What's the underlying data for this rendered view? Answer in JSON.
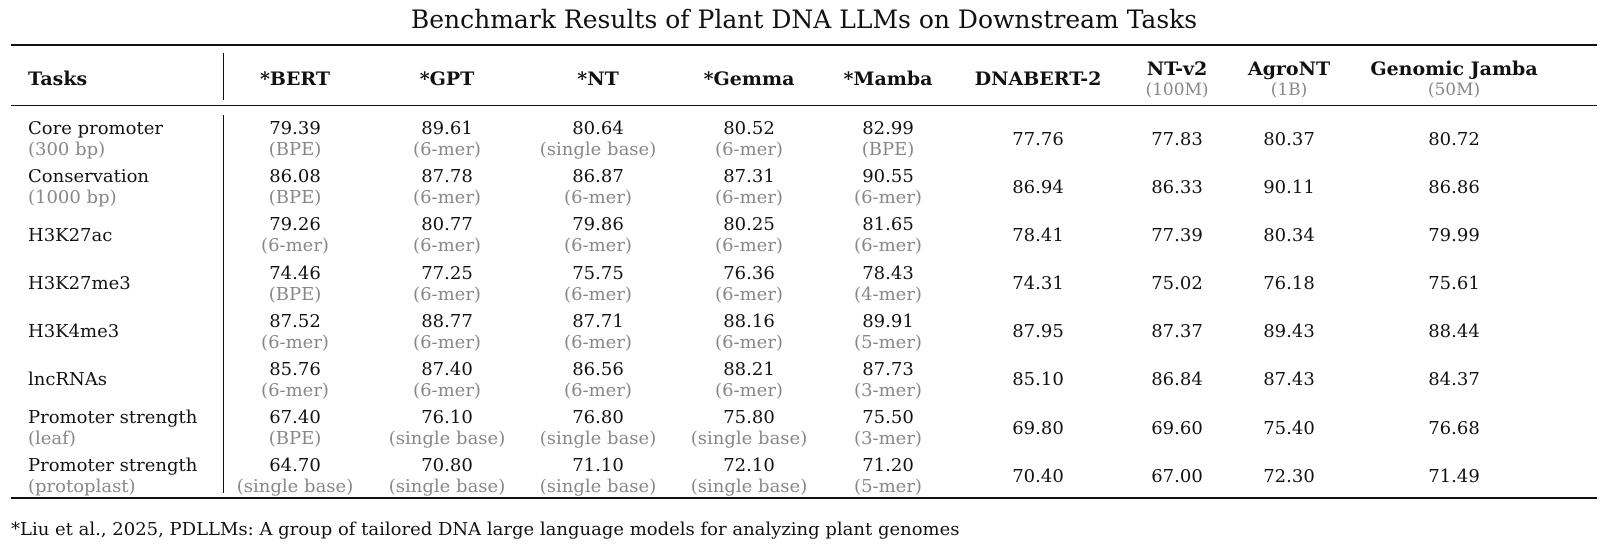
{
  "title": "Benchmark Results of Plant DNA LLMs on Downstream Tasks",
  "headers": {
    "tasks": "Tasks",
    "columns": [
      {
        "name": "*BERT",
        "sub": ""
      },
      {
        "name": "*GPT",
        "sub": ""
      },
      {
        "name": "*NT",
        "sub": ""
      },
      {
        "name": "*Gemma",
        "sub": ""
      },
      {
        "name": "*Mamba",
        "sub": ""
      },
      {
        "name": "DNABERT-2",
        "sub": ""
      },
      {
        "name": "NT-v2",
        "sub": "(100M)"
      },
      {
        "name": "AgroNT",
        "sub": "(1B)"
      },
      {
        "name": "Genomic Jamba",
        "sub": "(50M)"
      }
    ]
  },
  "rows": [
    {
      "task": "Core promoter",
      "task_sub": "(300 bp)",
      "pdllm": [
        {
          "value": "79.39",
          "tok": "(BPE)"
        },
        {
          "value": "89.61",
          "tok": "(6-mer)"
        },
        {
          "value": "80.64",
          "tok": "(single base)"
        },
        {
          "value": "80.52",
          "tok": "(6-mer)"
        },
        {
          "value": "82.99",
          "tok": "(BPE)"
        }
      ],
      "others": [
        "77.76",
        "77.83",
        "80.37",
        "80.72"
      ]
    },
    {
      "task": "Conservation",
      "task_sub": "(1000 bp)",
      "pdllm": [
        {
          "value": "86.08",
          "tok": "(BPE)"
        },
        {
          "value": "87.78",
          "tok": "(6-mer)"
        },
        {
          "value": "86.87",
          "tok": "(6-mer)"
        },
        {
          "value": "87.31",
          "tok": "(6-mer)"
        },
        {
          "value": "90.55",
          "tok": "(6-mer)"
        }
      ],
      "others": [
        "86.94",
        "86.33",
        "90.11",
        "86.86"
      ]
    },
    {
      "task": "H3K27ac",
      "task_sub": "",
      "pdllm": [
        {
          "value": "79.26",
          "tok": "(6-mer)"
        },
        {
          "value": "80.77",
          "tok": "(6-mer)"
        },
        {
          "value": "79.86",
          "tok": "(6-mer)"
        },
        {
          "value": "80.25",
          "tok": "(6-mer)"
        },
        {
          "value": "81.65",
          "tok": "(6-mer)"
        }
      ],
      "others": [
        "78.41",
        "77.39",
        "80.34",
        "79.99"
      ]
    },
    {
      "task": "H3K27me3",
      "task_sub": "",
      "pdllm": [
        {
          "value": "74.46",
          "tok": "(BPE)"
        },
        {
          "value": "77.25",
          "tok": "(6-mer)"
        },
        {
          "value": "75.75",
          "tok": "(6-mer)"
        },
        {
          "value": "76.36",
          "tok": "(6-mer)"
        },
        {
          "value": "78.43",
          "tok": "(4-mer)"
        }
      ],
      "others": [
        "74.31",
        "75.02",
        "76.18",
        "75.61"
      ]
    },
    {
      "task": "H3K4me3",
      "task_sub": "",
      "pdllm": [
        {
          "value": "87.52",
          "tok": "(6-mer)"
        },
        {
          "value": "88.77",
          "tok": "(6-mer)"
        },
        {
          "value": "87.71",
          "tok": "(6-mer)"
        },
        {
          "value": "88.16",
          "tok": "(6-mer)"
        },
        {
          "value": "89.91",
          "tok": "(5-mer)"
        }
      ],
      "others": [
        "87.95",
        "87.37",
        "89.43",
        "88.44"
      ]
    },
    {
      "task": "lncRNAs",
      "task_sub": "",
      "pdllm": [
        {
          "value": "85.76",
          "tok": "(6-mer)"
        },
        {
          "value": "87.40",
          "tok": "(6-mer)"
        },
        {
          "value": "86.56",
          "tok": "(6-mer)"
        },
        {
          "value": "88.21",
          "tok": "(6-mer)"
        },
        {
          "value": "87.73",
          "tok": "(3-mer)"
        }
      ],
      "others": [
        "85.10",
        "86.84",
        "87.43",
        "84.37"
      ]
    },
    {
      "task": "Promoter strength",
      "task_sub": "(leaf)",
      "pdllm": [
        {
          "value": "67.40",
          "tok": "(BPE)"
        },
        {
          "value": "76.10",
          "tok": "(single base)"
        },
        {
          "value": "76.80",
          "tok": "(single base)"
        },
        {
          "value": "75.80",
          "tok": "(single base)"
        },
        {
          "value": "75.50",
          "tok": "(3-mer)"
        }
      ],
      "others": [
        "69.80",
        "69.60",
        "75.40",
        "76.68"
      ]
    },
    {
      "task": "Promoter strength",
      "task_sub": "(protoplast)",
      "pdllm": [
        {
          "value": "64.70",
          "tok": "(single base)"
        },
        {
          "value": "70.80",
          "tok": "(single base)"
        },
        {
          "value": "71.10",
          "tok": "(single base)"
        },
        {
          "value": "72.10",
          "tok": "(single base)"
        },
        {
          "value": "71.20",
          "tok": "(5-mer)"
        }
      ],
      "others": [
        "70.40",
        "67.00",
        "72.30",
        "71.49"
      ]
    }
  ],
  "footnote": "*Liu et al., 2025, PDLLMs: A group of tailored DNA large language models for analyzing plant genomes",
  "colors": {
    "text": "#111111",
    "muted": "#888888",
    "rule": "#111111",
    "background": "#ffffff"
  }
}
